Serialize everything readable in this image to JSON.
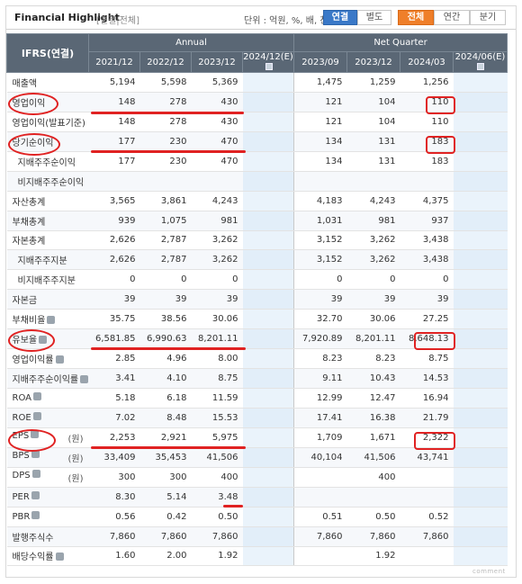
{
  "header": {
    "title": "Financial Highlight",
    "options": "[연결|전체]",
    "unit": "단위 : 억원, %, 배, 천주",
    "consolidation_tabs": [
      "연결",
      "별도"
    ],
    "period_tabs": [
      "전체",
      "연간",
      "분기"
    ],
    "colors": {
      "active_consolidation": "#3a79c8",
      "active_period": "#ef7f2a",
      "header_bg": "#5a6775",
      "annotation": "#e02222"
    }
  },
  "table": {
    "corner_label": "IFRS(연결)",
    "group_headers": [
      "Annual",
      "Net Quarter"
    ],
    "annual_columns": [
      "2021/12",
      "2022/12",
      "2023/12",
      "2024/12(E)"
    ],
    "quarter_columns": [
      "2023/09",
      "2023/12",
      "2024/03",
      "2024/06(E)"
    ],
    "rows": [
      {
        "label": "매출액",
        "annual": [
          "5,194",
          "5,598",
          "5,369",
          ""
        ],
        "quarter": [
          "1,475",
          "1,259",
          "1,256",
          ""
        ]
      },
      {
        "label": "영업이익",
        "annual": [
          "148",
          "278",
          "430",
          ""
        ],
        "quarter": [
          "121",
          "104",
          "110",
          ""
        ]
      },
      {
        "label": "영업이익(발표기준)",
        "annual": [
          "148",
          "278",
          "430",
          ""
        ],
        "quarter": [
          "121",
          "104",
          "110",
          ""
        ]
      },
      {
        "label": "당기순이익",
        "annual": [
          "177",
          "230",
          "470",
          ""
        ],
        "quarter": [
          "134",
          "131",
          "183",
          ""
        ]
      },
      {
        "label": "지배주주순이익",
        "annual": [
          "177",
          "230",
          "470",
          ""
        ],
        "quarter": [
          "134",
          "131",
          "183",
          ""
        ]
      },
      {
        "label": "비지배주주순이익",
        "annual": [
          "",
          "",
          "",
          ""
        ],
        "quarter": [
          "",
          "",
          "",
          ""
        ]
      },
      {
        "label": "자산총계",
        "annual": [
          "3,565",
          "3,861",
          "4,243",
          ""
        ],
        "quarter": [
          "4,183",
          "4,243",
          "4,375",
          ""
        ]
      },
      {
        "label": "부채총계",
        "annual": [
          "939",
          "1,075",
          "981",
          ""
        ],
        "quarter": [
          "1,031",
          "981",
          "937",
          ""
        ]
      },
      {
        "label": "자본총계",
        "annual": [
          "2,626",
          "2,787",
          "3,262",
          ""
        ],
        "quarter": [
          "3,152",
          "3,262",
          "3,438",
          ""
        ]
      },
      {
        "label": "지배주주지분",
        "annual": [
          "2,626",
          "2,787",
          "3,262",
          ""
        ],
        "quarter": [
          "3,152",
          "3,262",
          "3,438",
          ""
        ]
      },
      {
        "label": "비지배주주지분",
        "annual": [
          "0",
          "0",
          "0",
          ""
        ],
        "quarter": [
          "0",
          "0",
          "0",
          ""
        ]
      },
      {
        "label": "자본금",
        "annual": [
          "39",
          "39",
          "39",
          ""
        ],
        "quarter": [
          "39",
          "39",
          "39",
          ""
        ]
      },
      {
        "label": "부채비율",
        "annual": [
          "35.75",
          "38.56",
          "30.06",
          ""
        ],
        "quarter": [
          "32.70",
          "30.06",
          "27.25",
          ""
        ]
      },
      {
        "label": "유보율",
        "annual": [
          "6,581.85",
          "6,990.63",
          "8,201.11",
          ""
        ],
        "quarter": [
          "7,920.89",
          "8,201.11",
          "8,648.13",
          ""
        ]
      },
      {
        "label": "영업이익률",
        "annual": [
          "2.85",
          "4.96",
          "8.00",
          ""
        ],
        "quarter": [
          "8.23",
          "8.23",
          "8.75",
          ""
        ]
      },
      {
        "label": "지배주주순이익률",
        "annual": [
          "3.41",
          "4.10",
          "8.75",
          ""
        ],
        "quarter": [
          "9.11",
          "10.43",
          "14.53",
          ""
        ]
      },
      {
        "label": "ROA",
        "annual": [
          "5.18",
          "6.18",
          "11.59",
          ""
        ],
        "quarter": [
          "12.99",
          "12.47",
          "16.94",
          ""
        ]
      },
      {
        "label": "ROE",
        "annual": [
          "7.02",
          "8.48",
          "15.53",
          ""
        ],
        "quarter": [
          "17.41",
          "16.38",
          "21.79",
          ""
        ]
      },
      {
        "label": "EPS",
        "unit": "(원)",
        "annual": [
          "2,253",
          "2,921",
          "5,975",
          ""
        ],
        "quarter": [
          "1,709",
          "1,671",
          "2,322",
          ""
        ]
      },
      {
        "label": "BPS",
        "unit": "(원)",
        "annual": [
          "33,409",
          "35,453",
          "41,506",
          ""
        ],
        "quarter": [
          "40,104",
          "41,506",
          "43,741",
          ""
        ]
      },
      {
        "label": "DPS",
        "unit": "(원)",
        "annual": [
          "300",
          "300",
          "400",
          ""
        ],
        "quarter": [
          "",
          "400",
          "",
          ""
        ]
      },
      {
        "label": "PER",
        "annual": [
          "8.30",
          "5.14",
          "3.48",
          ""
        ],
        "quarter": [
          "",
          "",
          "",
          ""
        ]
      },
      {
        "label": "PBR",
        "annual": [
          "0.56",
          "0.42",
          "0.50",
          ""
        ],
        "quarter": [
          "0.51",
          "0.50",
          "0.52",
          ""
        ]
      },
      {
        "label": "발행주식수",
        "annual": [
          "7,860",
          "7,860",
          "7,860",
          ""
        ],
        "quarter": [
          "7,860",
          "7,860",
          "7,860",
          ""
        ]
      },
      {
        "label": "배당수익률",
        "annual": [
          "1.60",
          "2.00",
          "1.92",
          ""
        ],
        "quarter": [
          "",
          "1.92",
          "",
          ""
        ]
      }
    ]
  },
  "footer": "comment"
}
